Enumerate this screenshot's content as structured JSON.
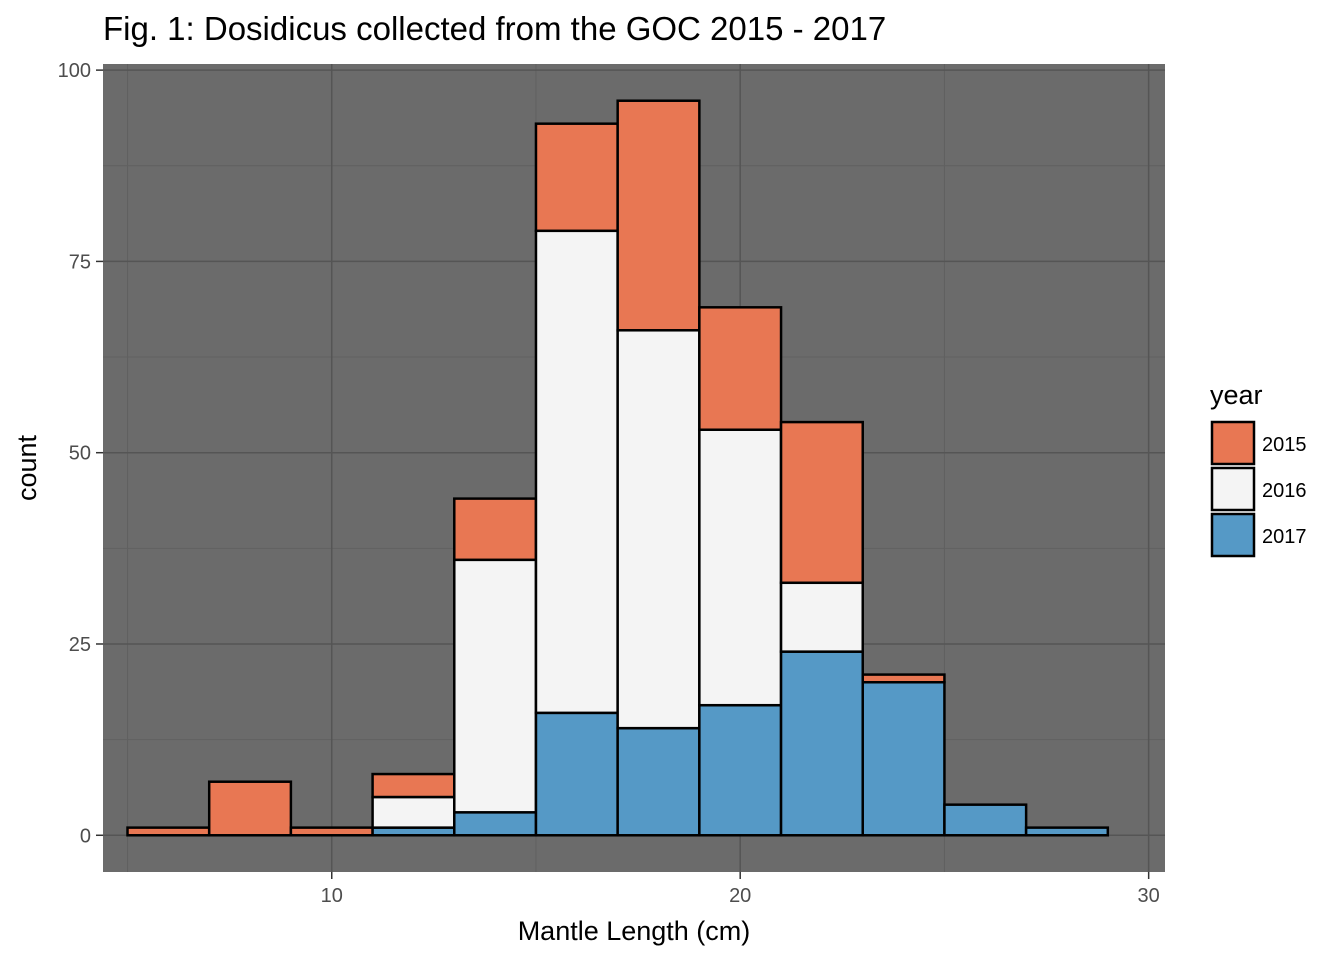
{
  "chart_data": {
    "type": "bar",
    "subtype": "stacked-histogram",
    "title": "Fig. 1: Dosidicus collected from the GOC 2015 - 2017",
    "xlabel": "Mantle Length (cm)",
    "ylabel": "count",
    "xlim": [
      4.4,
      30.4
    ],
    "ylim": [
      -4.8,
      100.8
    ],
    "x_ticks": [
      10,
      20,
      30
    ],
    "y_ticks": [
      0,
      25,
      50,
      75,
      100
    ],
    "grid": true,
    "bins": [
      {
        "start": 5,
        "end": 7
      },
      {
        "start": 7,
        "end": 9
      },
      {
        "start": 9,
        "end": 11
      },
      {
        "start": 11,
        "end": 13
      },
      {
        "start": 13,
        "end": 15
      },
      {
        "start": 15,
        "end": 17
      },
      {
        "start": 17,
        "end": 19
      },
      {
        "start": 19,
        "end": 21
      },
      {
        "start": 21,
        "end": 23
      },
      {
        "start": 23,
        "end": 25
      },
      {
        "start": 25,
        "end": 27
      },
      {
        "start": 27,
        "end": 29
      }
    ],
    "series": [
      {
        "name": "2017",
        "color": "#5599c6",
        "values": [
          0,
          0,
          0,
          1,
          3,
          16,
          14,
          17,
          24,
          20,
          4,
          1
        ]
      },
      {
        "name": "2016",
        "color": "#f4f4f4",
        "values": [
          0,
          0,
          0,
          4,
          33,
          63,
          52,
          36,
          9,
          0,
          0,
          0
        ]
      },
      {
        "name": "2015",
        "color": "#e87753",
        "values": [
          1,
          7,
          1,
          3,
          8,
          14,
          30,
          16,
          21,
          1,
          0,
          0
        ]
      }
    ],
    "legend": {
      "title": "year",
      "position": "right",
      "entries": [
        {
          "label": "2015",
          "color": "#e87753"
        },
        {
          "label": "2016",
          "color": "#f4f4f4"
        },
        {
          "label": "2017",
          "color": "#5599c6"
        }
      ]
    },
    "colors": {
      "panel_background": "#6b6b6b",
      "grid_major": "#555555",
      "grid_minor": "#606060",
      "bar_outline": "#000000"
    }
  }
}
